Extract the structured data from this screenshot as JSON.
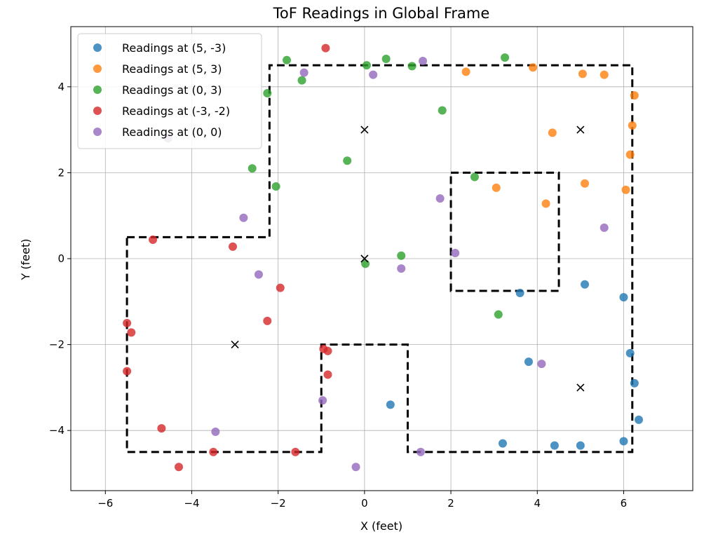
{
  "chart_data": {
    "type": "scatter",
    "title": "ToF Readings in Global Frame",
    "xlabel": "X (feet)",
    "ylabel": "Y (feet)",
    "xlim": [
      -6.8,
      7.6
    ],
    "ylim": [
      -5.4,
      5.4
    ],
    "xticks": [
      -6,
      -4,
      -2,
      0,
      2,
      4,
      6
    ],
    "yticks": [
      -4,
      -2,
      0,
      2,
      4
    ],
    "xtick_labels": [
      "−6",
      "−4",
      "−2",
      "0",
      "2",
      "4",
      "6"
    ],
    "ytick_labels": [
      "−4",
      "−2",
      "0",
      "2",
      "4"
    ],
    "grid": true,
    "legend_position": "top-left",
    "series": [
      {
        "name": "Readings at (5, -3)",
        "color": "#1f77b4",
        "points": [
          [
            5.1,
            -0.6
          ],
          [
            6.0,
            -0.9
          ],
          [
            3.6,
            -0.8
          ],
          [
            6.15,
            -2.2
          ],
          [
            6.25,
            -2.9
          ],
          [
            3.8,
            -2.4
          ],
          [
            0.6,
            -3.4
          ],
          [
            6.35,
            -3.75
          ],
          [
            3.2,
            -4.3
          ],
          [
            4.4,
            -4.35
          ],
          [
            5.0,
            -4.35
          ],
          [
            6.0,
            -4.25
          ]
        ]
      },
      {
        "name": "Readings at (5, 3)",
        "color": "#ff7f0e",
        "points": [
          [
            2.35,
            4.35
          ],
          [
            3.9,
            4.45
          ],
          [
            5.05,
            4.3
          ],
          [
            5.55,
            4.28
          ],
          [
            6.25,
            3.8
          ],
          [
            6.2,
            3.1
          ],
          [
            4.35,
            2.93
          ],
          [
            6.15,
            2.42
          ],
          [
            3.05,
            1.65
          ],
          [
            5.1,
            1.75
          ],
          [
            6.05,
            1.6
          ],
          [
            4.2,
            1.28
          ]
        ]
      },
      {
        "name": "Readings at (0, 3)",
        "color": "#2ca02c",
        "points": [
          [
            -1.8,
            4.62
          ],
          [
            0.05,
            4.5
          ],
          [
            0.5,
            4.65
          ],
          [
            1.1,
            4.48
          ],
          [
            3.25,
            4.68
          ],
          [
            -2.25,
            3.85
          ],
          [
            -1.45,
            4.15
          ],
          [
            1.8,
            3.45
          ],
          [
            -0.4,
            2.28
          ],
          [
            -2.6,
            2.1
          ],
          [
            -2.05,
            1.68
          ],
          [
            2.55,
            1.9
          ],
          [
            0.85,
            0.07
          ],
          [
            0.02,
            -0.12
          ],
          [
            3.1,
            -1.3
          ]
        ]
      },
      {
        "name": "Readings at (-3, -2)",
        "color": "#d62728",
        "points": [
          [
            -0.9,
            4.9
          ],
          [
            -4.9,
            0.44
          ],
          [
            -3.05,
            0.28
          ],
          [
            -1.95,
            -0.68
          ],
          [
            -2.25,
            -1.45
          ],
          [
            -5.5,
            -1.5
          ],
          [
            -5.4,
            -1.72
          ],
          [
            -0.95,
            -2.1
          ],
          [
            -0.85,
            -2.15
          ],
          [
            -5.5,
            -2.62
          ],
          [
            -0.85,
            -2.7
          ],
          [
            -4.7,
            -3.95
          ],
          [
            -3.5,
            -4.5
          ],
          [
            -1.6,
            -4.5
          ],
          [
            -4.3,
            -4.85
          ]
        ]
      },
      {
        "name": "Readings at (0, 0)",
        "color": "#9467bd",
        "points": [
          [
            1.35,
            4.6
          ],
          [
            -1.4,
            4.33
          ],
          [
            0.2,
            4.28
          ],
          [
            -4.55,
            2.8
          ],
          [
            -2.8,
            0.95
          ],
          [
            1.75,
            1.4
          ],
          [
            5.55,
            0.72
          ],
          [
            2.1,
            0.13
          ],
          [
            0.85,
            -0.23
          ],
          [
            -2.45,
            -0.37
          ],
          [
            4.1,
            -2.45
          ],
          [
            -0.97,
            -3.3
          ],
          [
            -3.45,
            -4.03
          ],
          [
            1.3,
            -4.5
          ],
          [
            -0.2,
            -4.85
          ]
        ]
      }
    ],
    "markers": {
      "symbol": "x",
      "color": "#000000",
      "points": [
        [
          0,
          3
        ],
        [
          5,
          3
        ],
        [
          0,
          0
        ],
        [
          -3,
          -2
        ],
        [
          5,
          -3
        ]
      ]
    },
    "boundary": {
      "style": "dashed",
      "color": "#000000",
      "outer": [
        [
          -5.5,
          0.5
        ],
        [
          -2.2,
          0.5
        ],
        [
          -2.2,
          4.5
        ],
        [
          6.2,
          4.5
        ],
        [
          6.2,
          -4.5
        ],
        [
          1.0,
          -4.5
        ],
        [
          1.0,
          -2.0
        ],
        [
          -1.0,
          -2.0
        ],
        [
          -1.0,
          -4.5
        ],
        [
          -5.5,
          -4.5
        ],
        [
          -5.5,
          0.5
        ]
      ],
      "inner": [
        [
          2.0,
          2.0
        ],
        [
          4.5,
          2.0
        ],
        [
          4.5,
          -0.75
        ],
        [
          2.0,
          -0.75
        ],
        [
          2.0,
          2.0
        ]
      ]
    }
  }
}
